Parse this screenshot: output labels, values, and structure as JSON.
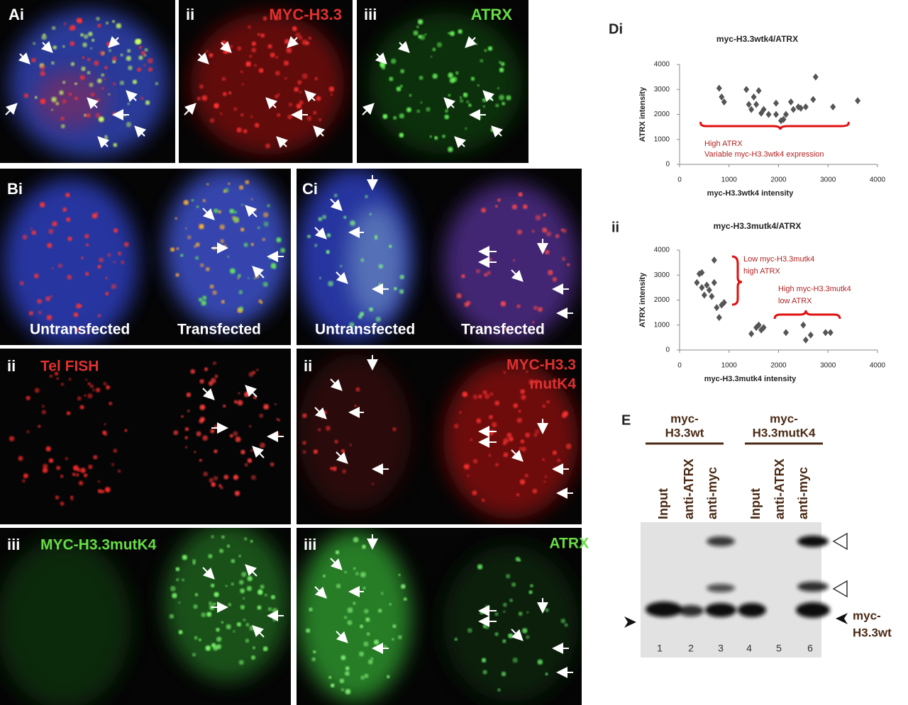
{
  "panels": {
    "a": {
      "label": "Ai",
      "ii": "ii",
      "ii_text": "MYC-H3.3",
      "iii": "iii",
      "iii_text": "ATRX"
    },
    "b": {
      "label": "Bi",
      "untransfected": "Untransfected",
      "transfected": "Transfected",
      "ii": "ii",
      "ii_text": "Tel FISH",
      "iii": "iii",
      "iii_text": "MYC-H3.3mutK4"
    },
    "c": {
      "label": "Ci",
      "untransfected": "Untransfected",
      "transfected": "Transfected",
      "ii": "ii",
      "ii_text": [
        "MYC-H3.3",
        "mutK4"
      ],
      "iii": "iii",
      "iii_text": "ATRX"
    }
  },
  "chart_data": [
    {
      "type": "scatter",
      "panel_label": "Di",
      "title": "myc-H3.3wtk4/ATRX",
      "xlabel": "myc-H3.3wtk4  intensity",
      "ylabel": "ATRX intensity",
      "x": [
        800,
        850,
        900,
        1350,
        1400,
        1450,
        1500,
        1550,
        1600,
        1650,
        1700,
        1800,
        1950,
        1950,
        2050,
        2100,
        2150,
        2250,
        2300,
        2400,
        2450,
        2550,
        2750,
        2700,
        3100,
        3600
      ],
      "y": [
        3050,
        2700,
        2500,
        3000,
        2400,
        2200,
        2700,
        2400,
        2950,
        2050,
        2200,
        2000,
        2000,
        2450,
        1750,
        1800,
        2000,
        2500,
        2200,
        2300,
        2250,
        2300,
        3500,
        2600,
        2300,
        2550
      ],
      "color": "#555555",
      "xlim": [
        0,
        4000
      ],
      "ylim": [
        0,
        4000
      ],
      "xticks": [
        0,
        1000,
        2000,
        3000,
        4000
      ],
      "yticks": [
        0,
        1000,
        2000,
        3000,
        4000
      ],
      "annotations": [
        "High ATRX",
        "Variable myc-H3.3wtk4 expression"
      ]
    },
    {
      "type": "scatter",
      "panel_label": "ii",
      "title": "myc-H3.3mutk4/ATRX",
      "xlabel": "myc-H3.3mutk4  intensity",
      "ylabel": "ATRX intensity",
      "x": [
        350,
        400,
        450,
        450,
        500,
        550,
        600,
        650,
        700,
        700,
        750,
        800,
        850,
        900,
        1450,
        1550,
        1600,
        1650,
        1700,
        2150,
        2500,
        2550,
        2650,
        2950,
        3050
      ],
      "y": [
        2700,
        3050,
        3100,
        2500,
        2200,
        2600,
        2400,
        2150,
        3600,
        2700,
        1700,
        1300,
        1800,
        1900,
        650,
        900,
        1000,
        800,
        900,
        700,
        1000,
        400,
        600,
        700,
        700
      ],
      "color": "#555555",
      "xlim": [
        0,
        4000
      ],
      "ylim": [
        0,
        4000
      ],
      "xticks": [
        0,
        1000,
        2000,
        3000,
        4000
      ],
      "yticks": [
        0,
        1000,
        2000,
        3000,
        4000
      ],
      "annotations": [
        "Low myc-H3.3mutk4",
        "high ATRX",
        "High  myc-H3.3mutk4",
        "low ATRX"
      ]
    }
  ],
  "blot": {
    "label": "E",
    "group1": [
      "myc-",
      "H3.3wt"
    ],
    "group2": [
      "myc-",
      "H3.3mutK4"
    ],
    "lanes": [
      "Input",
      "anti-ATRX",
      "anti-myc",
      "Input",
      "anti-ATRX",
      "anti-myc"
    ],
    "numbers": [
      "1",
      "2",
      "3",
      "4",
      "5",
      "6"
    ],
    "band_label": [
      "myc-",
      "H3.3wt"
    ]
  }
}
